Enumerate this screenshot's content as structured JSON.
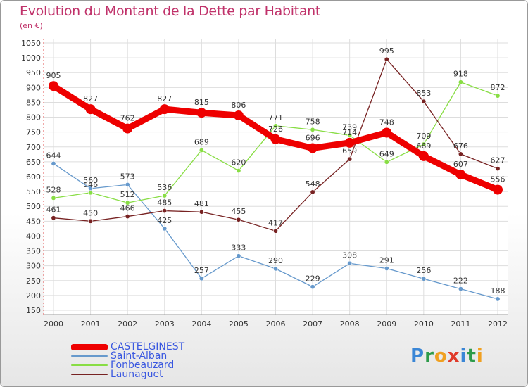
{
  "title": "Evolution du Montant de la Dette par Habitant",
  "subtitle": "(en €)",
  "logo_text": "Proxiti",
  "chart_data": {
    "type": "line",
    "title": "Evolution du Montant de la Dette par Habitant",
    "ylabel": "(en €)",
    "x": [
      "2000",
      "2001",
      "2002",
      "2003",
      "2004",
      "2005",
      "2006",
      "2007",
      "2008",
      "2009",
      "2010",
      "2011",
      "2012"
    ],
    "ylim": [
      150,
      1050
    ],
    "yticks": [
      150,
      200,
      250,
      300,
      350,
      400,
      450,
      500,
      550,
      600,
      650,
      700,
      750,
      800,
      850,
      900,
      950,
      1000,
      1050
    ],
    "grid": true,
    "legend_position": "bottom-left",
    "series": [
      {
        "name": "CASTELGINEST",
        "color": "#ee0000",
        "values": [
          905,
          827,
          762,
          827,
          815,
          806,
          726,
          696,
          714,
          748,
          669,
          607,
          556
        ]
      },
      {
        "name": "Saint-Alban",
        "color": "#6699cc",
        "values": [
          644,
          560,
          573,
          425,
          257,
          333,
          290,
          229,
          308,
          291,
          256,
          222,
          188
        ]
      },
      {
        "name": "Fonbeauzard",
        "color": "#88dd44",
        "values": [
          528,
          546,
          512,
          536,
          689,
          620,
          771,
          758,
          739,
          649,
          709,
          918,
          872
        ]
      },
      {
        "name": "Launaguet",
        "color": "#772222",
        "values": [
          461,
          450,
          466,
          485,
          481,
          455,
          417,
          548,
          659,
          995,
          853,
          676,
          627
        ]
      }
    ]
  }
}
